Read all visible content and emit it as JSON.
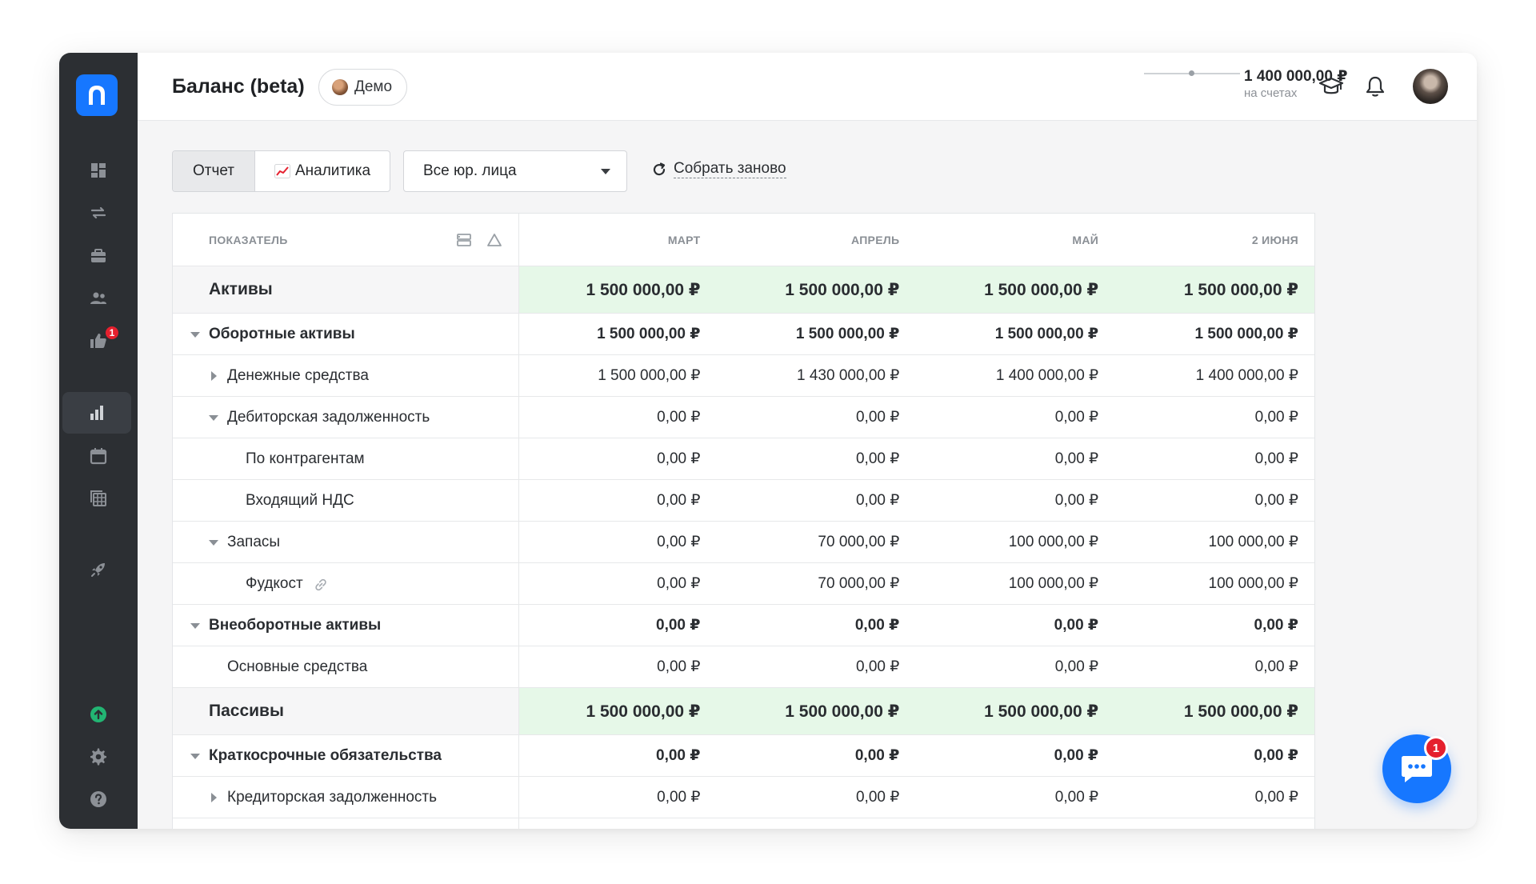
{
  "header": {
    "title": "Баланс (beta)",
    "demo_label": "Демо",
    "balance_amount": "1 400 000,00 ₽",
    "balance_sub": "на счетах"
  },
  "sidebar": {
    "icons": [
      "dashboard-icon",
      "transfer-icon",
      "briefcase-icon",
      "users-icon",
      "thumbs-up-icon",
      "bar-chart-icon",
      "calendar-icon",
      "table-icon",
      "rocket-icon",
      "upload-icon",
      "gear-icon",
      "help-icon"
    ],
    "likes_badge": "1"
  },
  "toolbar": {
    "tab_report": "Отчет",
    "tab_analytics": "Аналитика",
    "entity_select": "Все юр. лица",
    "rebuild_label": "Собрать заново"
  },
  "table": {
    "headers": [
      "ПОКАЗАТЕЛЬ",
      "МАРТ",
      "АПРЕЛЬ",
      "МАЙ",
      "2 ИЮНЯ"
    ],
    "rows": [
      {
        "label": "Активы",
        "values": [
          "1 500 000,00 ₽",
          "1 500 000,00 ₽",
          "1 500 000,00 ₽",
          "1 500 000,00 ₽"
        ]
      },
      {
        "label": "Оборотные активы",
        "values": [
          "1 500 000,00 ₽",
          "1 500 000,00 ₽",
          "1 500 000,00 ₽",
          "1 500 000,00 ₽"
        ]
      },
      {
        "label": "Денежные средства",
        "values": [
          "1 500 000,00 ₽",
          "1 430 000,00 ₽",
          "1 400 000,00 ₽",
          "1 400 000,00 ₽"
        ]
      },
      {
        "label": "Дебиторская задолженность",
        "values": [
          "0,00 ₽",
          "0,00 ₽",
          "0,00 ₽",
          "0,00 ₽"
        ]
      },
      {
        "label": "По контрагентам",
        "values": [
          "0,00 ₽",
          "0,00 ₽",
          "0,00 ₽",
          "0,00 ₽"
        ]
      },
      {
        "label": "Входящий НДС",
        "values": [
          "0,00 ₽",
          "0,00 ₽",
          "0,00 ₽",
          "0,00 ₽"
        ]
      },
      {
        "label": "Запасы",
        "values": [
          "0,00 ₽",
          "70 000,00 ₽",
          "100 000,00 ₽",
          "100 000,00 ₽"
        ]
      },
      {
        "label": "Фудкост",
        "values": [
          "0,00 ₽",
          "70 000,00 ₽",
          "100 000,00 ₽",
          "100 000,00 ₽"
        ]
      },
      {
        "label": "Внеоборотные активы",
        "values": [
          "0,00 ₽",
          "0,00 ₽",
          "0,00 ₽",
          "0,00 ₽"
        ]
      },
      {
        "label": "Основные средства",
        "values": [
          "0,00 ₽",
          "0,00 ₽",
          "0,00 ₽",
          "0,00 ₽"
        ]
      },
      {
        "label": "Пассивы",
        "values": [
          "1 500 000,00 ₽",
          "1 500 000,00 ₽",
          "1 500 000,00 ₽",
          "1 500 000,00 ₽"
        ]
      },
      {
        "label": "Краткосрочные обязательства",
        "values": [
          "0,00 ₽",
          "0,00 ₽",
          "0,00 ₽",
          "0,00 ₽"
        ]
      },
      {
        "label": "Кредиторская задолженность",
        "values": [
          "0,00 ₽",
          "0,00 ₽",
          "0,00 ₽",
          "0,00 ₽"
        ]
      }
    ]
  },
  "chat": {
    "badge": "1"
  },
  "colors": {
    "accent": "#1677ff",
    "sidebar": "#2c2f33",
    "total_row_bg": "#e6f8e8",
    "badge": "#e5202e",
    "upload_green": "#22b573"
  }
}
